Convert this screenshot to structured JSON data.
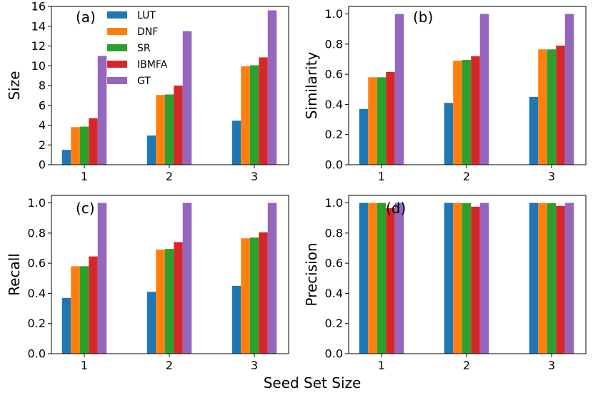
{
  "figure": {
    "xlabel": "Seed Set Size",
    "categories": [
      "1",
      "2",
      "3"
    ],
    "series_colors": {
      "LUT": "#1f77b4",
      "DNF": "#ff7f0e",
      "SR": "#2ca02c",
      "IBMFA": "#d62728",
      "GT": "#9467bd"
    }
  },
  "legend": {
    "location": "top-center of panel (a)",
    "entries": [
      "LUT",
      "DNF",
      "SR",
      "IBMFA",
      "GT"
    ]
  },
  "chart_data": [
    {
      "type": "bar",
      "panel": "(a)",
      "ylabel": "Size",
      "ylim": [
        0,
        16
      ],
      "yticks": [
        "0",
        "2",
        "4",
        "6",
        "8",
        "10",
        "12",
        "14",
        "16"
      ],
      "categories": [
        "1",
        "2",
        "3"
      ],
      "series": [
        {
          "name": "LUT",
          "values": [
            1.5,
            2.95,
            4.45
          ]
        },
        {
          "name": "DNF",
          "values": [
            3.8,
            7.05,
            9.95
          ]
        },
        {
          "name": "SR",
          "values": [
            3.85,
            7.1,
            10.05
          ]
        },
        {
          "name": "IBMFA",
          "values": [
            4.7,
            8.0,
            10.85
          ]
        },
        {
          "name": "GT",
          "values": [
            11.0,
            13.5,
            15.6
          ]
        }
      ]
    },
    {
      "type": "bar",
      "panel": "(b)",
      "ylabel": "Similarity",
      "ylim": [
        0,
        1.05
      ],
      "yticks": [
        "0.0",
        "0.2",
        "0.4",
        "0.6",
        "0.8",
        "1.0"
      ],
      "categories": [
        "1",
        "2",
        "3"
      ],
      "series": [
        {
          "name": "LUT",
          "values": [
            0.37,
            0.41,
            0.45
          ]
        },
        {
          "name": "DNF",
          "values": [
            0.58,
            0.69,
            0.765
          ]
        },
        {
          "name": "SR",
          "values": [
            0.58,
            0.695,
            0.765
          ]
        },
        {
          "name": "IBMFA",
          "values": [
            0.615,
            0.72,
            0.79
          ]
        },
        {
          "name": "GT",
          "values": [
            1.0,
            1.0,
            1.0
          ]
        }
      ]
    },
    {
      "type": "bar",
      "panel": "(c)",
      "ylabel": "Recall",
      "ylim": [
        0,
        1.05
      ],
      "yticks": [
        "0.0",
        "0.2",
        "0.4",
        "0.6",
        "0.8",
        "1.0"
      ],
      "categories": [
        "1",
        "2",
        "3"
      ],
      "series": [
        {
          "name": "LUT",
          "values": [
            0.37,
            0.41,
            0.45
          ]
        },
        {
          "name": "DNF",
          "values": [
            0.58,
            0.69,
            0.765
          ]
        },
        {
          "name": "SR",
          "values": [
            0.58,
            0.695,
            0.77
          ]
        },
        {
          "name": "IBMFA",
          "values": [
            0.645,
            0.74,
            0.805
          ]
        },
        {
          "name": "GT",
          "values": [
            1.0,
            1.0,
            1.0
          ]
        }
      ]
    },
    {
      "type": "bar",
      "panel": "(d)",
      "ylabel": "Precision",
      "ylim": [
        0,
        1.05
      ],
      "yticks": [
        "0.0",
        "0.2",
        "0.4",
        "0.6",
        "0.8",
        "1.0"
      ],
      "categories": [
        "1",
        "2",
        "3"
      ],
      "series": [
        {
          "name": "LUT",
          "values": [
            1.0,
            1.0,
            1.0
          ]
        },
        {
          "name": "DNF",
          "values": [
            1.0,
            1.0,
            1.0
          ]
        },
        {
          "name": "SR",
          "values": [
            1.0,
            0.998,
            0.998
          ]
        },
        {
          "name": "IBMFA",
          "values": [
            0.965,
            0.975,
            0.98
          ]
        },
        {
          "name": "GT",
          "values": [
            1.0,
            1.0,
            1.0
          ]
        }
      ]
    }
  ]
}
